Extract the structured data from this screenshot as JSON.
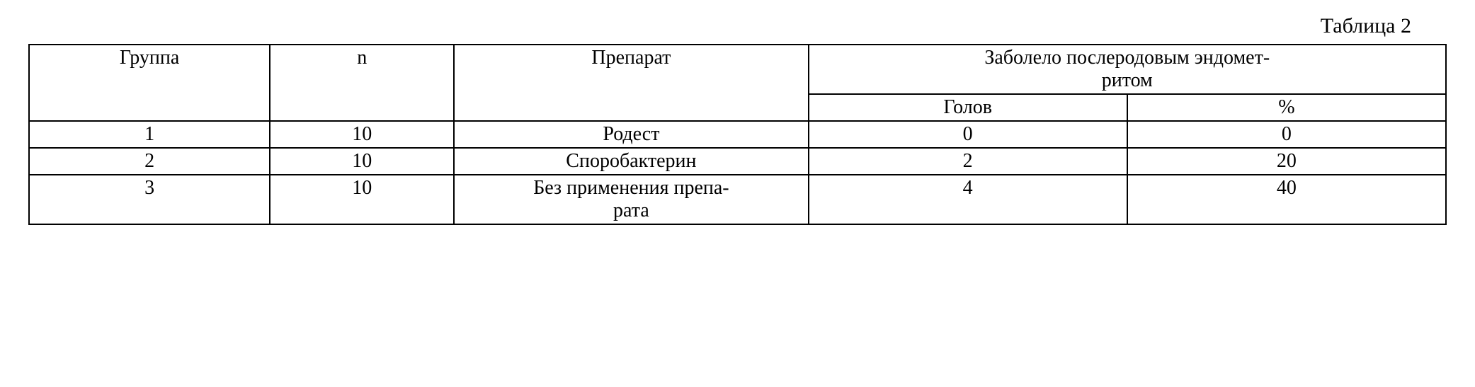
{
  "caption": "Таблица 2",
  "headers": {
    "group": "Группа",
    "n": "n",
    "prep": "Препарат",
    "diseased_span": "Заболело послеродовым эндомет-",
    "diseased_span2": "ритом",
    "heads": "Голов",
    "pct": "%"
  },
  "rows": [
    {
      "group": "1",
      "n": "10",
      "prep": "Родест",
      "heads": "0",
      "pct": "0"
    },
    {
      "group": "2",
      "n": "10",
      "prep": "Споробактерин",
      "heads": "2",
      "pct": "20"
    },
    {
      "group": "3",
      "n": "10",
      "prep_l1": "Без применения препа-",
      "prep_l2": "рата",
      "heads": "4",
      "pct": "40"
    }
  ]
}
